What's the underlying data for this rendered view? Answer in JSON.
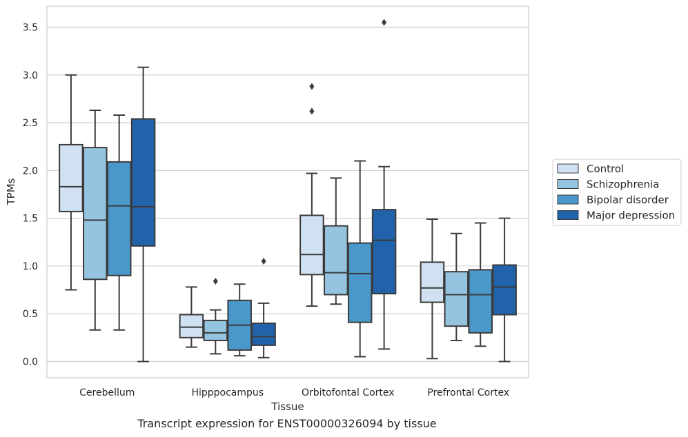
{
  "caption": "Transcript expression for ENST00000326094 by tissue",
  "chart_data": {
    "type": "boxplot",
    "xlabel": "Tissue",
    "ylabel": "TPMs",
    "ylim": [
      -0.17,
      3.72
    ],
    "yticks": [
      "0.0",
      "0.5",
      "1.0",
      "1.5",
      "2.0",
      "2.5",
      "3.0",
      "3.5"
    ],
    "grid": true,
    "legend_position": "outside-right",
    "categories": [
      "Cerebellum",
      "Hipppocampus",
      "Orbitofontal Cortex",
      "Prefrontal Cortex"
    ],
    "series": [
      {
        "name": "Control",
        "color": "#d0e1f2",
        "boxes": [
          {
            "whislo": 0.75,
            "q1": 1.57,
            "med": 1.83,
            "q3": 2.27,
            "whishi": 3.0,
            "fliers": []
          },
          {
            "whislo": 0.15,
            "q1": 0.25,
            "med": 0.36,
            "q3": 0.49,
            "whishi": 0.78,
            "fliers": []
          },
          {
            "whislo": 0.58,
            "q1": 0.91,
            "med": 1.12,
            "q3": 1.53,
            "whishi": 1.97,
            "fliers": [
              2.62,
              2.88
            ]
          },
          {
            "whislo": 0.03,
            "q1": 0.62,
            "med": 0.77,
            "q3": 1.04,
            "whishi": 1.49,
            "fliers": []
          }
        ]
      },
      {
        "name": "Schizophrenia",
        "color": "#94c4df",
        "boxes": [
          {
            "whislo": 0.33,
            "q1": 0.86,
            "med": 1.48,
            "q3": 2.24,
            "whishi": 2.63,
            "fliers": []
          },
          {
            "whislo": 0.08,
            "q1": 0.22,
            "med": 0.3,
            "q3": 0.43,
            "whishi": 0.54,
            "fliers": [
              0.84
            ]
          },
          {
            "whislo": 0.6,
            "q1": 0.7,
            "med": 0.93,
            "q3": 1.42,
            "whishi": 1.92,
            "fliers": []
          },
          {
            "whislo": 0.22,
            "q1": 0.37,
            "med": 0.7,
            "q3": 0.94,
            "whishi": 1.34,
            "fliers": []
          }
        ]
      },
      {
        "name": "Bipolar disorder",
        "color": "#4a98c9",
        "boxes": [
          {
            "whislo": 0.33,
            "q1": 0.9,
            "med": 1.63,
            "q3": 2.09,
            "whishi": 2.58,
            "fliers": []
          },
          {
            "whislo": 0.06,
            "q1": 0.12,
            "med": 0.38,
            "q3": 0.64,
            "whishi": 0.81,
            "fliers": []
          },
          {
            "whislo": 0.05,
            "q1": 0.41,
            "med": 0.92,
            "q3": 1.24,
            "whishi": 2.1,
            "fliers": []
          },
          {
            "whislo": 0.16,
            "q1": 0.3,
            "med": 0.7,
            "q3": 0.96,
            "whishi": 1.45,
            "fliers": []
          }
        ]
      },
      {
        "name": "Major depression",
        "color": "#2163aa",
        "boxes": [
          {
            "whislo": 0.0,
            "q1": 1.21,
            "med": 1.62,
            "q3": 2.54,
            "whishi": 3.08,
            "fliers": []
          },
          {
            "whislo": 0.04,
            "q1": 0.17,
            "med": 0.26,
            "q3": 0.4,
            "whishi": 0.61,
            "fliers": [
              1.05
            ]
          },
          {
            "whislo": 0.13,
            "q1": 0.71,
            "med": 1.27,
            "q3": 1.59,
            "whishi": 2.04,
            "fliers": [
              3.55
            ]
          },
          {
            "whislo": 0.0,
            "q1": 0.49,
            "med": 0.78,
            "q3": 1.01,
            "whishi": 1.5,
            "fliers": []
          }
        ]
      }
    ]
  }
}
